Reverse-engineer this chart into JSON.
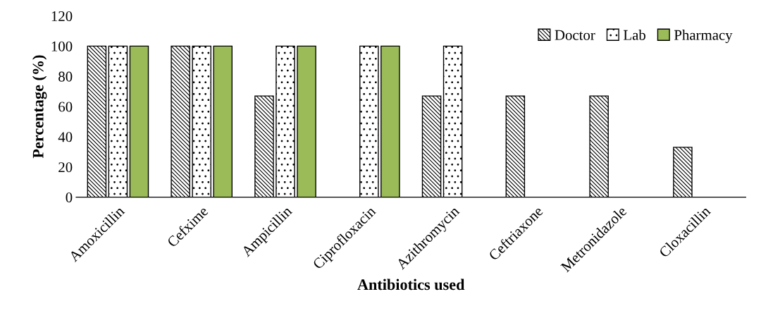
{
  "chart_data": {
    "type": "bar",
    "xlabel": "Antibiotics used",
    "ylabel": "Percentage (%)",
    "categories": [
      "Amoxicillin",
      "Cefxime",
      "Ampicillin",
      "Ciprofloxacin",
      "Azithromycin",
      "Ceftriaxone",
      "Metronidazole",
      "Cloxacillin"
    ],
    "series": [
      {
        "name": "Doctor",
        "color": "#000000",
        "values": [
          100,
          100,
          67,
          null,
          67,
          67,
          67,
          33
        ]
      },
      {
        "name": "Lab",
        "color": "#000000",
        "values": [
          100,
          100,
          100,
          100,
          100,
          null,
          null,
          null
        ]
      },
      {
        "name": "Pharmacy",
        "color": "#9bbb59",
        "values": [
          100,
          100,
          100,
          100,
          null,
          null,
          null,
          null
        ]
      }
    ],
    "ylim": [
      0,
      120
    ],
    "yticks": [
      0,
      20,
      40,
      60,
      80,
      100,
      120
    ],
    "grid": false,
    "legend": "top right"
  }
}
